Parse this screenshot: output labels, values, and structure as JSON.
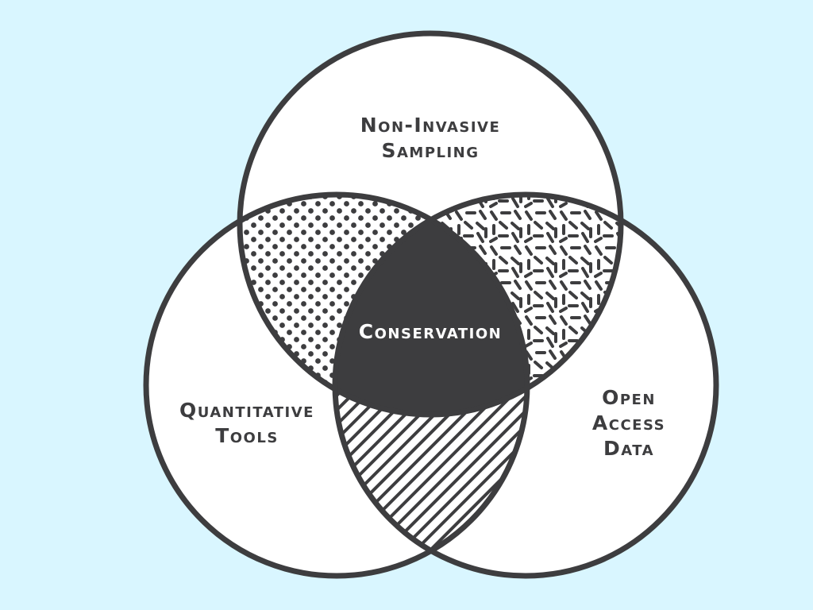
{
  "diagram": {
    "type": "venn-3",
    "sets": {
      "top": {
        "lines": [
          "Non-Invasive",
          "Sampling"
        ]
      },
      "left": {
        "lines": [
          "Quantitative",
          "Tools"
        ]
      },
      "right": {
        "lines": [
          "Open",
          "Access",
          "Data"
        ]
      }
    },
    "center": {
      "label": "Conservation"
    },
    "colors": {
      "background": "#d9f6ff",
      "circle_fill": "#ffffff",
      "outline": "#3d3d3f",
      "center_fill": "#3d3d3f",
      "center_text": "#ffffff"
    },
    "overlap_patterns": {
      "top_left": "dots",
      "top_right": "dashes",
      "left_right": "diagonal-stripes"
    }
  }
}
